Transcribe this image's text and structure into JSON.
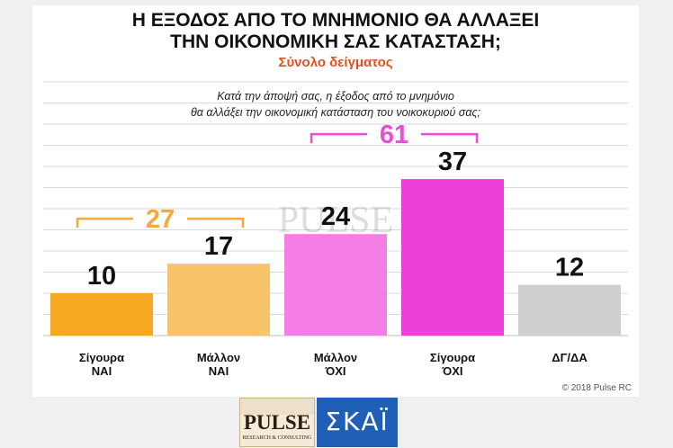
{
  "title_line1": "Η ΕΞΟΔΟΣ ΑΠΟ ΤΟ ΜΝΗΜΟΝΙΟ ΘΑ ΑΛΛΑΞΕΙ",
  "title_line2": "ΤΗΝ ΟΙΚΟΝΟΜΙΚΗ ΣΑΣ ΚΑΤΑΣΤΑΣΗ;",
  "subtitle": "Σύνολο δείγματος",
  "question_line1": "Κατά την άποψή σας, η έξοδος από το μνημόνιο",
  "question_line2": "θα αλλάξει την οικονομική κατάσταση του νοικοκυριού σας;",
  "copyright": "© 2018 Pulse RC",
  "watermark": "PULSE",
  "watermark_sub": "RESEARCH & CONSULTING",
  "logos": {
    "pulse": "PULSE",
    "pulse_sub": "RESEARCH & CONSULTING",
    "skai": "ΣΚΑΪ"
  },
  "colors": {
    "subtitle": "#e2501f",
    "yes_sum": "#f4a93a",
    "no_sum": "#e94fd6"
  },
  "chart_data": {
    "type": "bar",
    "categories": [
      [
        "Σίγουρα",
        "ΝΑΙ"
      ],
      [
        "Μάλλον",
        "ΝΑΙ"
      ],
      [
        "Μάλλον",
        "ΌΧΙ"
      ],
      [
        "Σίγουρα",
        "ΌΧΙ"
      ],
      [
        "ΔΓ/ΔΑ"
      ]
    ],
    "values": [
      10,
      17,
      24,
      37,
      12
    ],
    "colors": [
      "#f7a823",
      "#f8c46a",
      "#f57ee6",
      "#ee3fda",
      "#cfcfcf"
    ],
    "ylim": [
      0,
      60
    ],
    "grid": true,
    "groups": [
      {
        "label": "27",
        "from": 0,
        "to": 1,
        "color": "#f4a93a"
      },
      {
        "label": "61",
        "from": 2,
        "to": 3,
        "color": "#e94fd6"
      }
    ]
  }
}
